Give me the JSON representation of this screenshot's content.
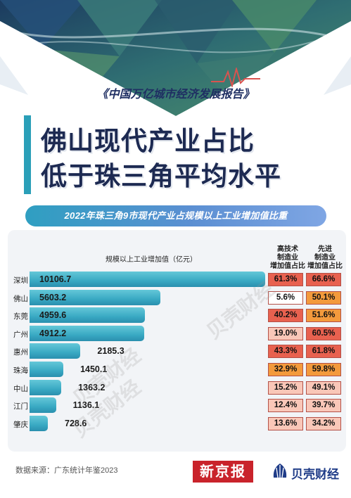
{
  "header": {
    "report_series": "《中国万亿城市经济发展报告》",
    "title_line_1": "佛山现代产业占比",
    "title_line_2": "低于珠三角平均水平",
    "subtitle": "2022年珠三角9市现代产业占规模以上工业增加值比重"
  },
  "columns": {
    "value": "规模以上工业增加值（亿元）",
    "hightech": [
      "高技术",
      "制造业",
      "增加值占比"
    ],
    "advanced": [
      "先进",
      "制造业",
      "增加值占比"
    ]
  },
  "colors": {
    "bar": "#39a9c3",
    "pct_high": "#e8614f",
    "pct_mid": "#f39a3c",
    "pct_low": "#f9c7b8",
    "pct_white": "#ffffff",
    "title": "#1d2a52",
    "logo_red": "#c9232b",
    "logo_blue": "#1f3c88"
  },
  "chart_data": {
    "type": "bar",
    "orientation": "horizontal",
    "title": "2022年珠三角9市现代产业占规模以上工业增加值比重",
    "categories": [
      "深圳",
      "佛山",
      "东莞",
      "广州",
      "惠州",
      "珠海",
      "中山",
      "江门",
      "肇庆"
    ],
    "series": [
      {
        "name": "规模以上工业增加值（亿元）",
        "values": [
          10106.7,
          5603.2,
          4959.6,
          4912.2,
          2185.3,
          1450.1,
          1363.2,
          1136.1,
          728.6
        ]
      }
    ],
    "table": {
      "hightech_share": [
        "61.3%",
        "5.6%",
        "40.2%",
        "19.0%",
        "43.3%",
        "32.9%",
        "15.2%",
        "12.4%",
        "13.6%"
      ],
      "advanced_share": [
        "66.6%",
        "50.1%",
        "51.6%",
        "60.5%",
        "61.8%",
        "59.8%",
        "49.1%",
        "39.7%",
        "34.2%"
      ]
    },
    "hightech_color_levels": [
      "high",
      "white",
      "high",
      "low",
      "high",
      "mid",
      "low",
      "low",
      "low"
    ],
    "advanced_color_levels": [
      "high",
      "mid",
      "mid",
      "high",
      "high",
      "mid",
      "low",
      "low",
      "low"
    ],
    "xlim": [
      0,
      10106.7
    ],
    "grid": false,
    "legend": "none"
  },
  "watermarks": [
    "贝壳财经",
    "贝壳财经",
    "贝壳财经"
  ],
  "footer": {
    "source": "数据来源：广东统计年鉴2023",
    "logo_xinjingbao": "新京报",
    "logo_beike": "贝壳财经",
    "beike_icon": "shell-icon"
  }
}
